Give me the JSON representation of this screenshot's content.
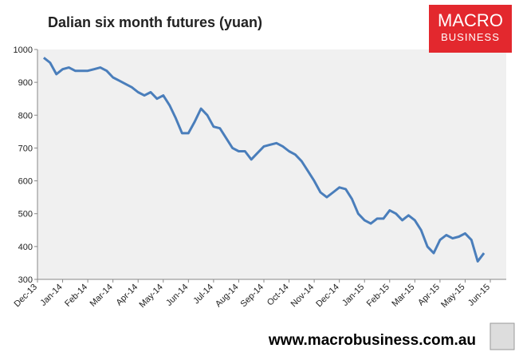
{
  "chart_data": {
    "type": "line",
    "title": "Dalian six month futures (yuan)",
    "categories": [
      "Dec-13",
      null,
      null,
      null,
      "Jan-14",
      null,
      null,
      null,
      "Feb-14",
      null,
      null,
      null,
      "Mar-14",
      null,
      null,
      null,
      "Apr-14",
      null,
      null,
      null,
      "May-14",
      null,
      null,
      null,
      "Jun-14",
      null,
      null,
      null,
      "Jul-14",
      null,
      null,
      null,
      "Aug-14",
      null,
      null,
      null,
      "Sep-14",
      null,
      null,
      null,
      "Oct-14",
      null,
      null,
      null,
      "Nov-14",
      null,
      null,
      null,
      "Dec-14",
      null,
      null,
      null,
      "Jan-15",
      null,
      null,
      null,
      "Feb-15",
      null,
      null,
      null,
      "Mar-15",
      null,
      null,
      null,
      "Apr-15",
      null,
      null,
      null,
      "May-15",
      null,
      null,
      null,
      "Jun-15"
    ],
    "values": [
      null,
      975,
      960,
      925,
      940,
      945,
      935,
      935,
      935,
      940,
      945,
      935,
      915,
      905,
      895,
      885,
      870,
      860,
      870,
      850,
      860,
      830,
      790,
      745,
      745,
      780,
      820,
      800,
      765,
      760,
      730,
      700,
      690,
      690,
      665,
      685,
      705,
      710,
      715,
      705,
      690,
      680,
      660,
      630,
      600,
      565,
      550,
      565,
      580,
      575,
      545,
      500,
      480,
      470,
      485,
      485,
      510,
      500,
      480,
      495,
      480,
      450,
      400,
      380,
      420,
      435,
      425,
      430,
      440,
      420,
      355,
      380,
      null
    ],
    "color": "#4a7ebb",
    "ylim": [
      300,
      1000
    ],
    "yticks": [
      300,
      400,
      500,
      600,
      700,
      800,
      900,
      1000
    ]
  },
  "logo": {
    "line1": "MACRO",
    "line2": "BUSINESS"
  },
  "footer": "www.macrobusiness.com.au"
}
